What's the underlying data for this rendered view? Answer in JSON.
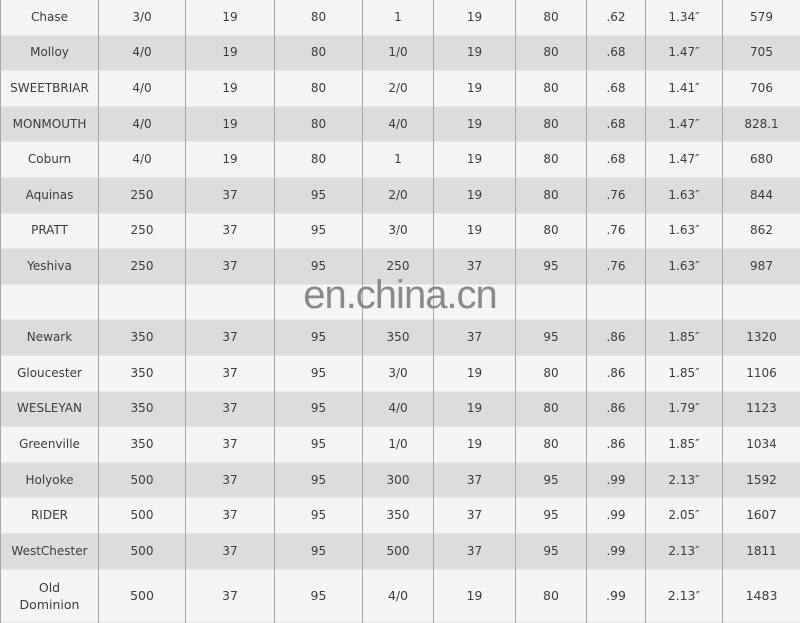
{
  "rows": [
    [
      "Chase",
      "3/0",
      "19",
      "80",
      "1",
      "19",
      "80",
      ".62",
      "1.34″",
      "579"
    ],
    [
      "Molloy",
      "4/0",
      "19",
      "80",
      "1/0",
      "19",
      "80",
      ".68",
      "1.47″",
      "705"
    ],
    [
      "SWEETBRIAR",
      "4/0",
      "19",
      "80",
      "2/0",
      "19",
      "80",
      ".68",
      "1.41″",
      "706"
    ],
    [
      "MONMOUTH",
      "4/0",
      "19",
      "80",
      "4/0",
      "19",
      "80",
      ".68",
      "1.47″",
      "828.1"
    ],
    [
      "Coburn",
      "4/0",
      "19",
      "80",
      "1",
      "19",
      "80",
      ".68",
      "1.47″",
      "680"
    ],
    [
      "Aquinas",
      "250",
      "37",
      "95",
      "2/0",
      "19",
      "80",
      ".76",
      "1.63″",
      "844"
    ],
    [
      "PRATT",
      "250",
      "37",
      "95",
      "3/0",
      "19",
      "80",
      ".76",
      "1.63″",
      "862"
    ],
    [
      "Yeshiva",
      "250",
      "37",
      "95",
      "250",
      "37",
      "95",
      ".76",
      "1.63″",
      "987"
    ],
    [
      "",
      "",
      "",
      "",
      "",
      "",
      "",
      "",
      "",
      ""
    ],
    [
      "Newark",
      "350",
      "37",
      "95",
      "350",
      "37",
      "95",
      ".86",
      "1.85″",
      "1320"
    ],
    [
      "Gloucester",
      "350",
      "37",
      "95",
      "3/0",
      "19",
      "80",
      ".86",
      "1.85″",
      "1106"
    ],
    [
      "WESLEYAN",
      "350",
      "37",
      "95",
      "4/0",
      "19",
      "80",
      ".86",
      "1.79″",
      "1123"
    ],
    [
      "Greenville",
      "350",
      "37",
      "95",
      "1/0",
      "19",
      "80",
      ".86",
      "1.85″",
      "1034"
    ],
    [
      "Holyoke",
      "500",
      "37",
      "95",
      "300",
      "37",
      "95",
      ".99",
      "2.13″",
      "1592"
    ],
    [
      "RIDER",
      "500",
      "37",
      "95",
      "350",
      "37",
      "95",
      ".99",
      "2.05″",
      "1607"
    ],
    [
      "WestChester",
      "500",
      "37",
      "95",
      "500",
      "37",
      "95",
      ".99",
      "2.13″",
      "1811"
    ],
    [
      "Old Dominion",
      "500",
      "37",
      "95",
      "4/0",
      "19",
      "80",
      ".99",
      "2.13″",
      "1483"
    ]
  ],
  "watermark": "en.china.cn"
}
